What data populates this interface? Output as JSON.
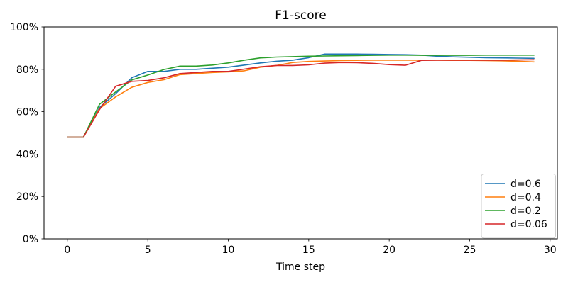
{
  "figure": {
    "background": "#ffffff",
    "frame_color": "#000000"
  },
  "chart_data": {
    "type": "line",
    "title": "F1-score",
    "xlabel": "Time step",
    "ylabel": "",
    "grid": false,
    "xlim": [
      -1.45,
      30.45
    ],
    "ylim": [
      0,
      100
    ],
    "x_ticks": [
      0,
      5,
      10,
      15,
      20,
      25,
      30
    ],
    "y_ticks": [
      {
        "value": 0,
        "label": "0%"
      },
      {
        "value": 20,
        "label": "20%"
      },
      {
        "value": 40,
        "label": "40%"
      },
      {
        "value": 60,
        "label": "60%"
      },
      {
        "value": 80,
        "label": "80%"
      },
      {
        "value": 100,
        "label": "100%"
      }
    ],
    "x": [
      0,
      1,
      2,
      3,
      4,
      5,
      6,
      7,
      8,
      9,
      10,
      11,
      12,
      13,
      14,
      15,
      16,
      17,
      18,
      19,
      20,
      21,
      22,
      23,
      24,
      25,
      26,
      27,
      28,
      29
    ],
    "series": [
      {
        "name": "d=0.6",
        "color": "#1f77b4",
        "values": [
          48,
          48,
          62,
          68.5,
          76,
          79,
          79,
          80,
          80,
          80.5,
          81,
          82,
          83,
          83.8,
          84.3,
          85.5,
          87.2,
          87.2,
          87.2,
          87.1,
          87,
          86.9,
          86.7,
          86.2,
          85.9,
          85.7,
          85.5,
          85.4,
          85.3,
          85.2
        ]
      },
      {
        "name": "d=0.4",
        "color": "#ff7f0e",
        "values": [
          48,
          48,
          61.5,
          67,
          71.5,
          73.8,
          75.1,
          77.5,
          78,
          78.5,
          78.8,
          79.3,
          81,
          81.8,
          83.2,
          83.7,
          83.9,
          84.1,
          84.2,
          84.3,
          84.3,
          84.3,
          84.3,
          84.3,
          84.2,
          84.2,
          84.1,
          84,
          83.8,
          83.5
        ]
      },
      {
        "name": "d=0.2",
        "color": "#2ca02c",
        "values": [
          48,
          48,
          63.5,
          69.3,
          75,
          77.3,
          79.9,
          81.5,
          81.5,
          82,
          83,
          84.3,
          85.4,
          85.8,
          86,
          86.2,
          86.3,
          86.4,
          86.5,
          86.6,
          86.7,
          86.7,
          86.6,
          86.6,
          86.6,
          86.6,
          86.7,
          86.7,
          86.7,
          86.7
        ]
      },
      {
        "name": "d=0.06",
        "color": "#d62728",
        "values": [
          48,
          48,
          61,
          72,
          74.3,
          74.7,
          76,
          78,
          78.5,
          79,
          79,
          80.1,
          81.2,
          81.8,
          81.8,
          82.1,
          82.9,
          83.2,
          83.1,
          82.8,
          82.2,
          81.9,
          84.2,
          84.3,
          84.3,
          84.3,
          84.3,
          84.3,
          84.4,
          84.5
        ]
      }
    ],
    "legend": {
      "position": "lower right",
      "border_color": "#cccccc",
      "background": "#ffffff",
      "entries": [
        "d=0.6",
        "d=0.4",
        "d=0.2",
        "d=0.06"
      ]
    }
  }
}
